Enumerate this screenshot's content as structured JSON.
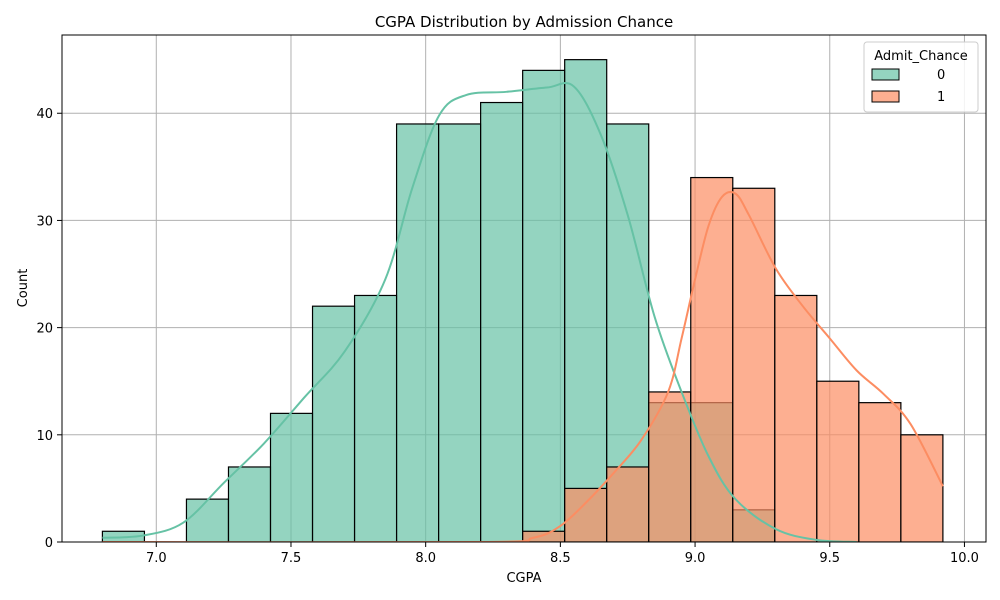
{
  "chart_data": {
    "type": "histogram",
    "title": "CGPA Distribution by Admission Chance",
    "xlabel": "CGPA",
    "ylabel": "Count",
    "xlim": [
      6.65,
      10.08
    ],
    "ylim": [
      0,
      47.3
    ],
    "xticks": [
      7.0,
      7.5,
      8.0,
      8.5,
      9.0,
      9.5,
      10.0
    ],
    "yticks": [
      0,
      10,
      20,
      30,
      40
    ],
    "grid": true,
    "legend": {
      "title": "Admit_Chance",
      "placement": "top-right"
    },
    "bin_edges": [
      6.8,
      6.956,
      7.112,
      7.268,
      7.424,
      7.58,
      7.736,
      7.892,
      8.048,
      8.204,
      8.36,
      8.516,
      8.672,
      8.828,
      8.984,
      9.14,
      9.296,
      9.452,
      9.608,
      9.764,
      9.92
    ],
    "series": [
      {
        "name": "0",
        "color": "#66c2a5",
        "counts": [
          1,
          0,
          4,
          7,
          12,
          22,
          23,
          39,
          39,
          41,
          44,
          45,
          39,
          13,
          13,
          3,
          0,
          0,
          0,
          0
        ],
        "kde": [
          [
            6.8,
            0.4
          ],
          [
            6.95,
            0.6
          ],
          [
            7.1,
            1.8
          ],
          [
            7.25,
            5.5
          ],
          [
            7.4,
            9.2
          ],
          [
            7.55,
            13.5
          ],
          [
            7.7,
            17.8
          ],
          [
            7.85,
            24.5
          ],
          [
            7.95,
            33.0
          ],
          [
            8.05,
            39.8
          ],
          [
            8.15,
            41.7
          ],
          [
            8.3,
            42.0
          ],
          [
            8.45,
            42.4
          ],
          [
            8.55,
            42.5
          ],
          [
            8.65,
            38.0
          ],
          [
            8.75,
            30.5
          ],
          [
            8.85,
            21.0
          ],
          [
            8.95,
            14.0
          ],
          [
            9.05,
            8.0
          ],
          [
            9.15,
            4.0
          ],
          [
            9.3,
            1.2
          ],
          [
            9.45,
            0.2
          ],
          [
            9.6,
            0.0
          ]
        ]
      },
      {
        "name": "1",
        "color": "#fc8d62",
        "counts": [
          0,
          0,
          0,
          0,
          0,
          0,
          0,
          0,
          0,
          0,
          1,
          5,
          7,
          14,
          34,
          33,
          23,
          15,
          13,
          10
        ],
        "kde": [
          [
            6.8,
            0.0
          ],
          [
            8.2,
            0.0
          ],
          [
            8.4,
            0.4
          ],
          [
            8.5,
            1.5
          ],
          [
            8.6,
            3.8
          ],
          [
            8.7,
            6.5
          ],
          [
            8.8,
            9.5
          ],
          [
            8.9,
            14.0
          ],
          [
            8.95,
            19.0
          ],
          [
            9.0,
            24.5
          ],
          [
            9.05,
            29.5
          ],
          [
            9.1,
            32.2
          ],
          [
            9.15,
            32.5
          ],
          [
            9.2,
            30.5
          ],
          [
            9.3,
            25.5
          ],
          [
            9.4,
            22.0
          ],
          [
            9.5,
            19.0
          ],
          [
            9.6,
            16.0
          ],
          [
            9.7,
            13.8
          ],
          [
            9.8,
            11.0
          ],
          [
            9.92,
            5.2
          ]
        ]
      }
    ]
  }
}
